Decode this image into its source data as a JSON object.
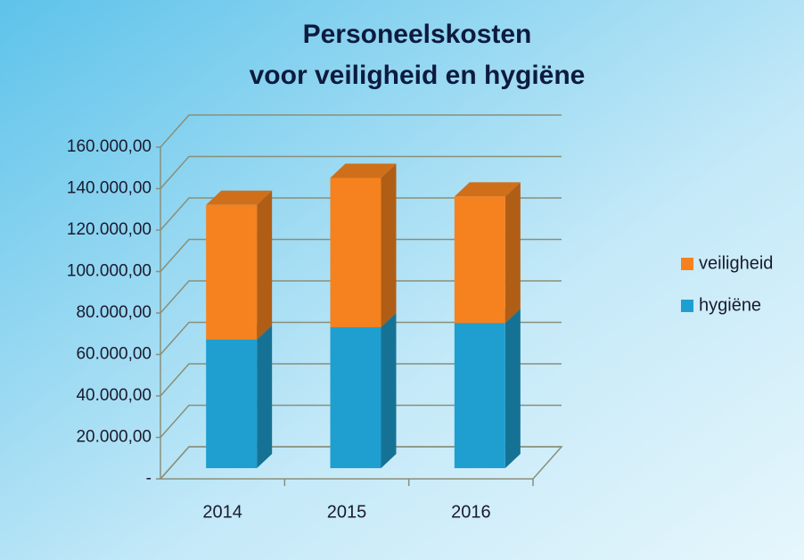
{
  "chart_data": {
    "type": "bar3d_stacked",
    "title": [
      "Personeelskosten",
      "voor veiligheid en hygiëne"
    ],
    "categories": [
      "2014",
      "2015",
      "2016"
    ],
    "series": [
      {
        "name": "hygiëne",
        "color": "#1f9fcf",
        "values": [
          62000,
          68000,
          70000
        ]
      },
      {
        "name": "veiligheid",
        "color": "#f5821f",
        "values": [
          65000,
          72000,
          61000
        ]
      }
    ],
    "ylim": [
      0,
      160000
    ],
    "yticks": [
      {
        "value": 0,
        "label": "-"
      },
      {
        "value": 20000,
        "label": "20.000,00"
      },
      {
        "value": 40000,
        "label": "40.000,00"
      },
      {
        "value": 60000,
        "label": "60.000,00"
      },
      {
        "value": 80000,
        "label": "80.000,00"
      },
      {
        "value": 100000,
        "label": "100.000,00"
      },
      {
        "value": 120000,
        "label": "120.000,00"
      },
      {
        "value": 140000,
        "label": "140.000,00"
      },
      {
        "value": 160000,
        "label": "160.000,00"
      }
    ],
    "grid": true,
    "legend": "right"
  }
}
